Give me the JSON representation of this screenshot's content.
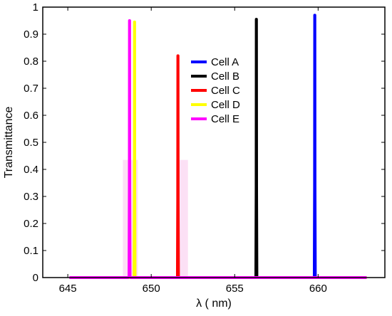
{
  "chart_data": {
    "type": "line",
    "title": "",
    "xlabel": "λ ( nm)",
    "ylabel": "Transmittance",
    "xlim": [
      643.5,
      664
    ],
    "ylim": [
      0,
      1
    ],
    "xticks": [
      645,
      650,
      655,
      660
    ],
    "yticks": [
      0,
      0.1,
      0.2,
      0.3,
      0.4,
      0.5,
      0.6,
      0.7,
      0.8,
      0.9,
      1
    ],
    "ytick_labels": [
      "0",
      "0.1",
      "0.2",
      "0.3",
      "0.4",
      "0.5",
      "0.6",
      "0.7",
      "0.8",
      "0.9",
      "1"
    ],
    "grid": false,
    "legend_position": "top-right",
    "baseline_range": [
      645.1,
      662.9
    ],
    "series": [
      {
        "name": "Cell A",
        "color": "#0000ff",
        "peak_x": 659.8,
        "peak_y": 0.97
      },
      {
        "name": "Cell B",
        "color": "#000000",
        "peak_x": 656.3,
        "peak_y": 0.955
      },
      {
        "name": "Cell C",
        "color": "#ff0000",
        "peak_x": 651.6,
        "peak_y": 0.82
      },
      {
        "name": "Cell D",
        "color": "#ffff00",
        "peak_x": 649.0,
        "peak_y": 0.945
      },
      {
        "name": "Cell E",
        "color": "#ff00ff",
        "peak_x": 648.7,
        "peak_y": 0.95
      }
    ]
  }
}
